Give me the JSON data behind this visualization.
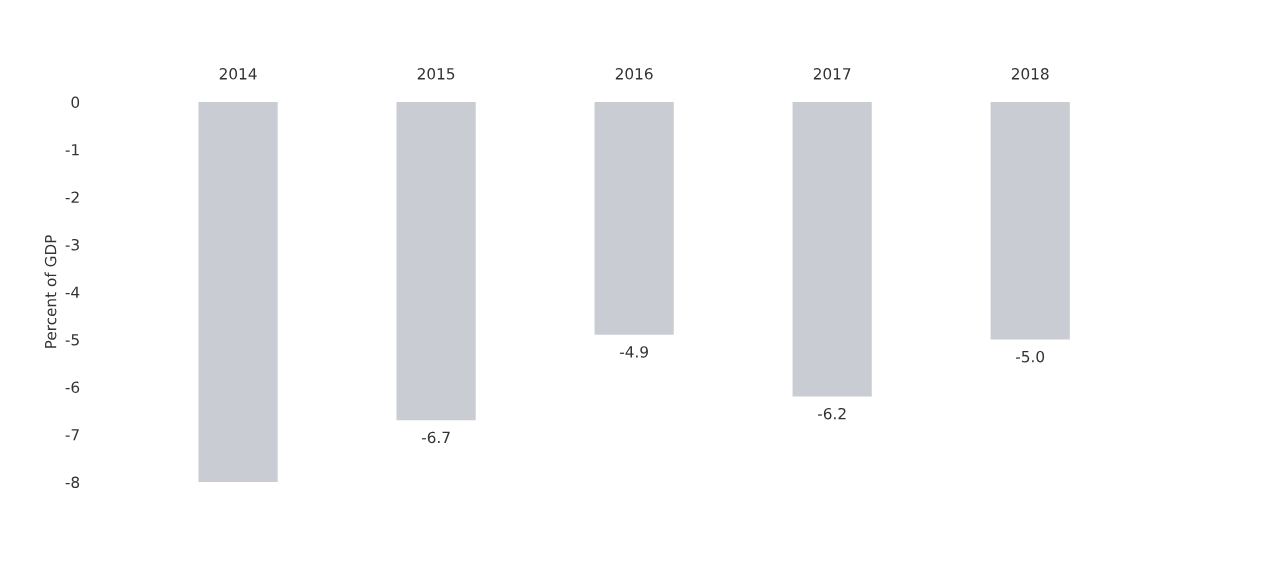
{
  "chart_data": {
    "type": "bar",
    "ylabel": "Percent of GDP",
    "categories": [
      "2014",
      "2015",
      "2016",
      "2017",
      "2018"
    ],
    "values": [
      -8.0,
      -6.7,
      -4.9,
      -6.2,
      -5.0
    ],
    "value_labels": [
      null,
      "-6.7",
      "-4.9",
      "-6.2",
      "-5.0"
    ],
    "color": "#c9ccd3",
    "ylim": [
      -8,
      0
    ],
    "yticks": [
      0,
      -1,
      -2,
      -3,
      -4,
      -5,
      -6,
      -7,
      -8
    ],
    "grid": false
  }
}
